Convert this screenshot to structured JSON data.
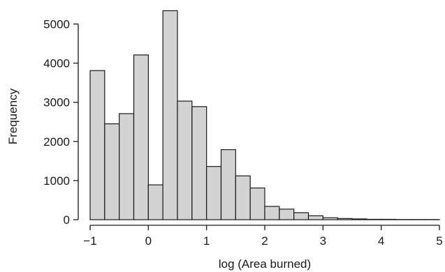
{
  "chart_data": {
    "type": "bar",
    "title": "",
    "xlabel": "log (Area burned)",
    "ylabel": "Frequency",
    "xlim": [
      -1,
      5
    ],
    "ylim": [
      0,
      5400
    ],
    "x_ticks": [
      -1,
      0,
      1,
      2,
      3,
      4,
      5
    ],
    "x_tick_labels": [
      "−1",
      "0",
      "1",
      "2",
      "3",
      "4",
      "5"
    ],
    "y_ticks": [
      0,
      1000,
      2000,
      3000,
      4000,
      5000
    ],
    "y_tick_labels": [
      "0",
      "1000",
      "2000",
      "3000",
      "4000",
      "5000"
    ],
    "bin_width": 0.25,
    "bin_edges": [
      -1,
      -0.75,
      -0.5,
      -0.25,
      0,
      0.25,
      0.5,
      0.75,
      1,
      1.25,
      1.5,
      1.75,
      2,
      2.25,
      2.5,
      2.75,
      3,
      3.25,
      3.5,
      3.75,
      4,
      4.25,
      4.5,
      4.75,
      5
    ],
    "values": [
      3810,
      2450,
      2710,
      4210,
      890,
      5340,
      3030,
      2890,
      1360,
      1790,
      1120,
      810,
      340,
      270,
      180,
      100,
      50,
      30,
      20,
      10,
      10,
      5,
      5,
      5
    ],
    "bar_color": "#d3d3d3",
    "edge_color": "#1a1a1a",
    "grid": false
  }
}
